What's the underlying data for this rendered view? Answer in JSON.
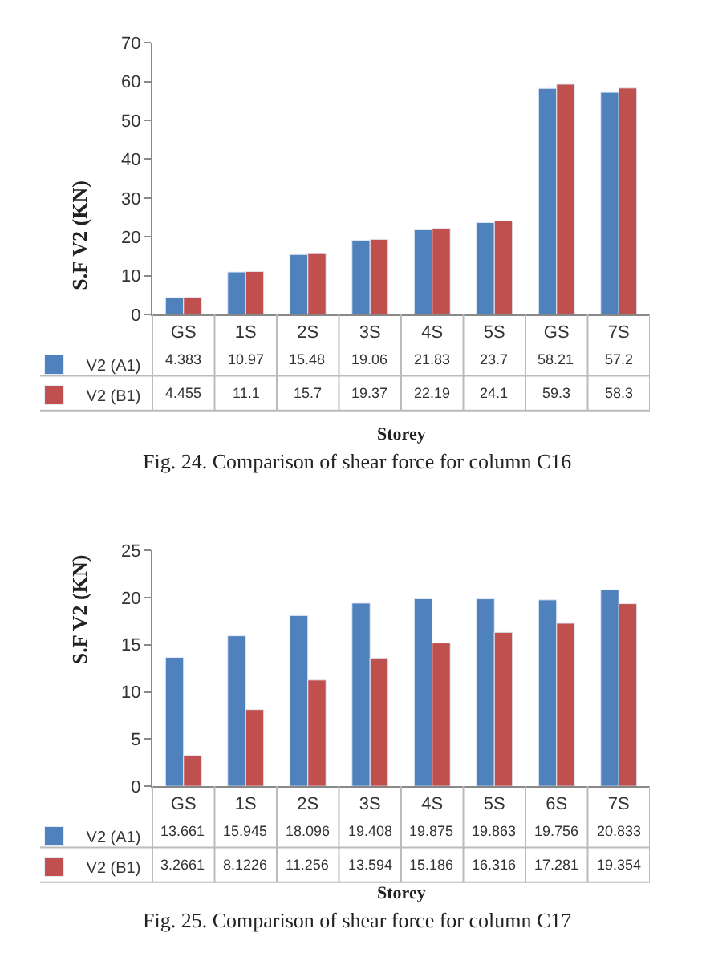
{
  "chart_data": [
    {
      "type": "bar",
      "xlabel": "Storey",
      "ylabel": "S.F V2 (KN)",
      "categories": [
        "GS",
        "1S",
        "2S",
        "3S",
        "4S",
        "5S",
        "GS",
        "7S"
      ],
      "series": [
        {
          "name": "V2 (A1)",
          "color": "#4f81bd",
          "values": [
            4.383,
            10.97,
            15.48,
            19.06,
            21.83,
            23.7,
            58.21,
            57.2
          ]
        },
        {
          "name": "V2 (B1)",
          "color": "#c0504d",
          "values": [
            4.455,
            11.1,
            15.7,
            19.37,
            22.19,
            24.1,
            59.3,
            58.3
          ]
        }
      ],
      "ylim": [
        0,
        70
      ],
      "yticks": [
        0,
        10,
        20,
        30,
        40,
        50,
        60,
        70
      ],
      "data_labels": true,
      "legend": "bottom",
      "annotations": [
        "Fig. 24. Comparison of shear force for column C16"
      ]
    },
    {
      "type": "bar",
      "xlabel": "Storey",
      "ylabel": "S.F V2 (KN)",
      "categories": [
        "GS",
        "1S",
        "2S",
        "3S",
        "4S",
        "5S",
        "6S",
        "7S"
      ],
      "series": [
        {
          "name": "V2 (A1)",
          "color": "#4f81bd",
          "values": [
            13.661,
            15.945,
            18.096,
            19.408,
            19.875,
            19.863,
            19.756,
            20.833
          ]
        },
        {
          "name": "V2 (B1)",
          "color": "#c0504d",
          "values": [
            3.2661,
            8.1226,
            11.256,
            13.594,
            15.186,
            16.316,
            17.281,
            19.354
          ]
        }
      ],
      "ylim": [
        0,
        25
      ],
      "yticks": [
        0,
        5,
        10,
        15,
        20,
        25
      ],
      "data_labels": true,
      "legend": "bottom",
      "annotations": [
        "Fig. 25. Comparison of shear force for column C17"
      ]
    }
  ]
}
